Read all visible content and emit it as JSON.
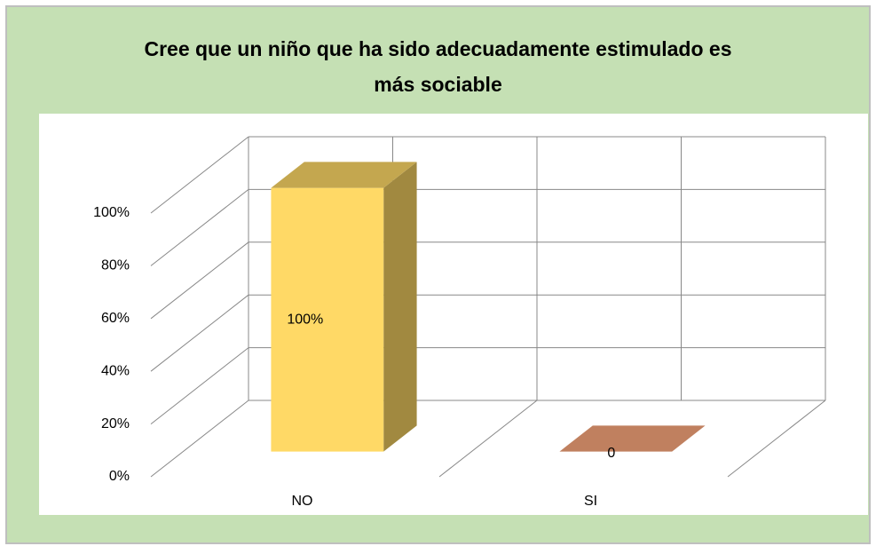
{
  "chart_data": {
    "type": "bar3d",
    "title": "Cree que un niño que ha sido adecuadamente estimulado es más sociable",
    "categories": [
      "NO",
      "SI"
    ],
    "values": [
      100,
      0
    ],
    "value_labels": [
      "100%",
      "0"
    ],
    "colors": [
      "#ffd966",
      "#c0805f"
    ],
    "ylim": [
      0,
      100
    ],
    "yticks": [
      {
        "value": 0,
        "label": "0%"
      },
      {
        "value": 20,
        "label": "20%"
      },
      {
        "value": 40,
        "label": "40%"
      },
      {
        "value": 60,
        "label": "60%"
      },
      {
        "value": 80,
        "label": "80%"
      },
      {
        "value": 100,
        "label": "100%"
      }
    ],
    "grid": true
  }
}
